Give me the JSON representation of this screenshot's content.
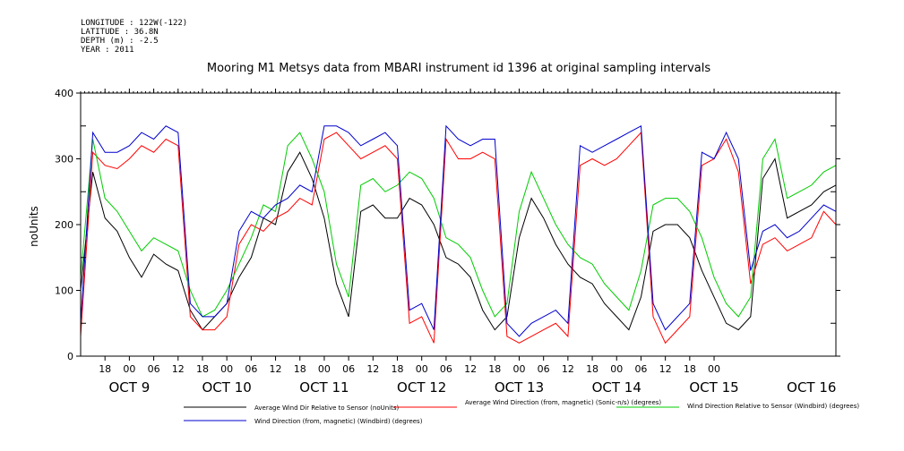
{
  "meta": {
    "longitude": "LONGITUDE : 122W(-122)",
    "latitude": "LATITUDE : 36.8N",
    "depth": "DEPTH (m) : -2.5",
    "year": "YEAR : 2011"
  },
  "chart_data": {
    "type": "line",
    "title": "Mooring M1 Metsys data from MBARI instrument id 1396 at original sampling intervals",
    "xlabel": "",
    "ylabel": "noUnits",
    "xlim": [
      "2011-10-08 12:00",
      "2011-10-16 06:00"
    ],
    "ylim": [
      0,
      400
    ],
    "y_ticks": [
      0,
      100,
      200,
      300,
      400
    ],
    "hour_ticks": [
      "18",
      "00",
      "06",
      "12",
      "18",
      "00",
      "06",
      "12",
      "18",
      "00",
      "06",
      "12",
      "18",
      "00",
      "06",
      "12",
      "18",
      "00",
      "06",
      "12",
      "18",
      "00",
      "06",
      "12",
      "18",
      "00"
    ],
    "day_labels": [
      "OCT  9",
      "OCT 10",
      "OCT 11",
      "OCT 12",
      "OCT 13",
      "OCT 14",
      "OCT 15",
      "OCT 16"
    ],
    "grid": false,
    "legend_position": "bottom",
    "series": [
      {
        "name": "Average Wind Dir Relative to Sensor (noUnits)",
        "color": "#000000",
        "x": [
          "10/08 12h",
          "10/08 15h",
          "10/08 18h",
          "10/08 21h",
          "10/09 00h",
          "10/09 03h",
          "10/09 06h",
          "10/09 09h",
          "10/09 12h",
          "10/09 15h",
          "10/09 18h",
          "10/09 21h",
          "10/10 00h",
          "10/10 03h",
          "10/10 06h",
          "10/10 09h",
          "10/10 12h",
          "10/10 15h",
          "10/10 18h",
          "10/10 21h",
          "10/11 00h",
          "10/11 03h",
          "10/11 06h",
          "10/11 09h",
          "10/11 12h",
          "10/11 15h",
          "10/11 18h",
          "10/11 21h",
          "10/12 00h",
          "10/12 03h",
          "10/12 06h",
          "10/12 09h",
          "10/12 12h",
          "10/12 15h",
          "10/12 18h",
          "10/12 21h",
          "10/13 00h",
          "10/13 03h",
          "10/13 06h",
          "10/13 09h",
          "10/13 12h",
          "10/13 15h",
          "10/13 18h",
          "10/13 21h",
          "10/14 00h",
          "10/14 03h",
          "10/14 06h",
          "10/14 09h",
          "10/14 12h",
          "10/14 15h",
          "10/14 18h",
          "10/14 21h",
          "10/15 00h",
          "10/15 03h",
          "10/15 06h",
          "10/15 09h",
          "10/15 12h",
          "10/15 15h",
          "10/15 18h",
          "10/15 21h",
          "10/16 00h",
          "10/16 03h",
          "10/16 06h"
        ],
        "values": [
          100,
          280,
          210,
          190,
          150,
          120,
          155,
          140,
          130,
          70,
          40,
          60,
          80,
          120,
          150,
          210,
          200,
          280,
          310,
          270,
          210,
          110,
          60,
          220,
          230,
          210,
          210,
          240,
          230,
          200,
          150,
          140,
          120,
          70,
          40,
          60,
          180,
          240,
          210,
          170,
          140,
          120,
          110,
          80,
          60,
          40,
          90,
          190,
          200,
          200,
          180,
          130,
          90,
          50,
          40,
          60,
          270,
          300,
          210,
          220,
          230,
          250,
          260
        ]
      },
      {
        "name": "Average Wind Direction (from, magnetic) (Sonic-n/s) (degrees)",
        "color": "#ff0000",
        "x": [
          "10/08 12h",
          "10/08 15h",
          "10/08 18h",
          "10/08 21h",
          "10/09 00h",
          "10/09 03h",
          "10/09 06h",
          "10/09 09h",
          "10/09 12h",
          "10/09 15h",
          "10/09 18h",
          "10/09 21h",
          "10/10 00h",
          "10/10 03h",
          "10/10 06h",
          "10/10 09h",
          "10/10 12h",
          "10/10 15h",
          "10/10 18h",
          "10/10 21h",
          "10/11 00h",
          "10/11 03h",
          "10/11 06h",
          "10/11 09h",
          "10/11 12h",
          "10/11 15h",
          "10/11 18h",
          "10/11 21h",
          "10/12 00h",
          "10/12 03h",
          "10/12 06h",
          "10/12 09h",
          "10/12 12h",
          "10/12 15h",
          "10/12 18h",
          "10/12 21h",
          "10/13 00h",
          "10/13 03h",
          "10/13 06h",
          "10/13 09h",
          "10/13 12h",
          "10/13 15h",
          "10/13 18h",
          "10/13 21h",
          "10/14 00h",
          "10/14 03h",
          "10/14 06h",
          "10/14 09h",
          "10/14 12h",
          "10/14 15h",
          "10/14 18h",
          "10/14 21h",
          "10/15 00h",
          "10/15 03h",
          "10/15 06h",
          "10/15 09h",
          "10/15 12h",
          "10/15 15h",
          "10/15 18h",
          "10/15 21h",
          "10/16 00h",
          "10/16 03h",
          "10/16 06h"
        ],
        "values": [
          30,
          310,
          290,
          285,
          300,
          320,
          310,
          330,
          320,
          60,
          40,
          40,
          60,
          170,
          200,
          190,
          210,
          220,
          240,
          230,
          330,
          340,
          320,
          300,
          310,
          320,
          300,
          50,
          60,
          20,
          330,
          300,
          300,
          310,
          300,
          30,
          20,
          30,
          40,
          50,
          30,
          290,
          300,
          290,
          300,
          320,
          340,
          60,
          20,
          40,
          60,
          290,
          300,
          330,
          280,
          110,
          170,
          180,
          160,
          170,
          180,
          220,
          200
        ]
      },
      {
        "name": "Wind Direction Relative to Sensor (Windbird) (degrees)",
        "color": "#00cc00",
        "x": [
          "10/08 12h",
          "10/08 15h",
          "10/08 18h",
          "10/08 21h",
          "10/09 00h",
          "10/09 03h",
          "10/09 06h",
          "10/09 09h",
          "10/09 12h",
          "10/09 15h",
          "10/09 18h",
          "10/09 21h",
          "10/10 00h",
          "10/10 03h",
          "10/10 06h",
          "10/10 09h",
          "10/10 12h",
          "10/10 15h",
          "10/10 18h",
          "10/10 21h",
          "10/11 00h",
          "10/11 03h",
          "10/11 06h",
          "10/11 09h",
          "10/11 12h",
          "10/11 15h",
          "10/11 18h",
          "10/11 21h",
          "10/12 00h",
          "10/12 03h",
          "10/12 06h",
          "10/12 09h",
          "10/12 12h",
          "10/12 15h",
          "10/12 18h",
          "10/12 21h",
          "10/13 00h",
          "10/13 03h",
          "10/13 06h",
          "10/13 09h",
          "10/13 12h",
          "10/13 15h",
          "10/13 18h",
          "10/13 21h",
          "10/14 00h",
          "10/14 03h",
          "10/14 06h",
          "10/14 09h",
          "10/14 12h",
          "10/14 15h",
          "10/14 18h",
          "10/14 21h",
          "10/15 00h",
          "10/15 03h",
          "10/15 06h",
          "10/15 09h",
          "10/15 12h",
          "10/15 15h",
          "10/15 18h",
          "10/15 21h",
          "10/16 00h",
          "10/16 03h",
          "10/16 06h"
        ],
        "values": [
          120,
          330,
          240,
          220,
          190,
          160,
          180,
          170,
          160,
          100,
          60,
          70,
          100,
          140,
          180,
          230,
          220,
          320,
          340,
          300,
          250,
          140,
          90,
          260,
          270,
          250,
          260,
          280,
          270,
          240,
          180,
          170,
          150,
          100,
          60,
          80,
          220,
          280,
          240,
          200,
          170,
          150,
          140,
          110,
          90,
          70,
          130,
          230,
          240,
          240,
          220,
          180,
          120,
          80,
          60,
          90,
          300,
          330,
          240,
          250,
          260,
          280,
          290
        ]
      },
      {
        "name": "Wind Direction (from, magnetic) (Windbird) (degrees)",
        "color": "#0000cc",
        "x": [
          "10/08 12h",
          "10/08 15h",
          "10/08 18h",
          "10/08 21h",
          "10/09 00h",
          "10/09 03h",
          "10/09 06h",
          "10/09 09h",
          "10/09 12h",
          "10/09 15h",
          "10/09 18h",
          "10/09 21h",
          "10/10 00h",
          "10/10 03h",
          "10/10 06h",
          "10/10 09h",
          "10/10 12h",
          "10/10 15h",
          "10/10 18h",
          "10/10 21h",
          "10/11 00h",
          "10/11 03h",
          "10/11 06h",
          "10/11 09h",
          "10/11 12h",
          "10/11 15h",
          "10/11 18h",
          "10/11 21h",
          "10/12 00h",
          "10/12 03h",
          "10/12 06h",
          "10/12 09h",
          "10/12 12h",
          "10/12 15h",
          "10/12 18h",
          "10/12 21h",
          "10/13 00h",
          "10/13 03h",
          "10/13 06h",
          "10/13 09h",
          "10/13 12h",
          "10/13 15h",
          "10/13 18h",
          "10/13 21h",
          "10/14 00h",
          "10/14 03h",
          "10/14 06h",
          "10/14 09h",
          "10/14 12h",
          "10/14 15h",
          "10/14 18h",
          "10/14 21h",
          "10/15 00h",
          "10/15 03h",
          "10/15 06h",
          "10/15 09h",
          "10/15 12h",
          "10/15 15h",
          "10/15 18h",
          "10/15 21h",
          "10/16 00h",
          "10/16 03h",
          "10/16 06h"
        ],
        "values": [
          50,
          340,
          310,
          310,
          320,
          340,
          330,
          350,
          340,
          80,
          60,
          60,
          80,
          190,
          220,
          210,
          230,
          240,
          260,
          250,
          350,
          350,
          340,
          320,
          330,
          340,
          320,
          70,
          80,
          40,
          350,
          330,
          320,
          330,
          330,
          50,
          30,
          50,
          60,
          70,
          50,
          320,
          310,
          320,
          330,
          340,
          350,
          80,
          40,
          60,
          80,
          310,
          300,
          340,
          300,
          130,
          190,
          200,
          180,
          190,
          210,
          230,
          220
        ]
      }
    ]
  }
}
